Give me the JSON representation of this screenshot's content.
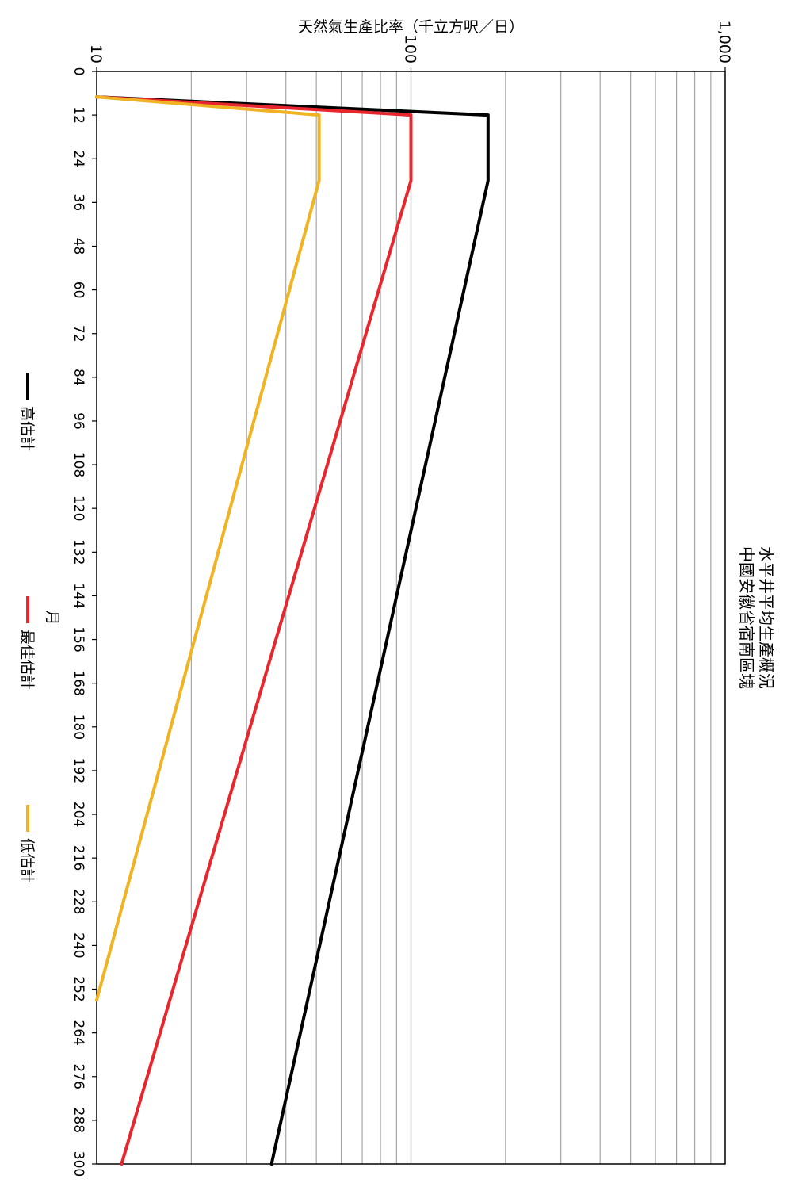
{
  "chart_data": {
    "type": "line",
    "title": "水平井平均生產概況",
    "subtitle": "中國安徽省宿南區塊",
    "xlabel": "月",
    "ylabel": "天然氣生產比率（千立方呎／日）",
    "x_scale": "linear",
    "y_scale": "log",
    "xlim": [
      0,
      300
    ],
    "ylim": [
      10,
      1000
    ],
    "x_ticks": [
      0,
      12,
      24,
      36,
      48,
      60,
      72,
      84,
      96,
      108,
      120,
      132,
      144,
      156,
      168,
      180,
      192,
      204,
      216,
      228,
      240,
      252,
      264,
      276,
      288,
      300
    ],
    "y_tick_labels": [
      "10",
      "100",
      "1,000"
    ],
    "y_tick_values": [
      10,
      100,
      1000
    ],
    "grid": "horizontal minor + major",
    "legend_position": "bottom",
    "series": [
      {
        "name": "高估計",
        "color": "#000000",
        "x": [
          7,
          12,
          30,
          300
        ],
        "y": [
          10,
          176,
          176,
          36
        ]
      },
      {
        "name": "最佳估計",
        "color": "#e8262d",
        "x": [
          7,
          12,
          30,
          300
        ],
        "y": [
          10,
          100,
          100,
          12
        ]
      },
      {
        "name": "低估計",
        "color": "#f0b323",
        "x": [
          7,
          12,
          30,
          255
        ],
        "y": [
          10,
          51,
          51,
          10
        ]
      }
    ]
  }
}
